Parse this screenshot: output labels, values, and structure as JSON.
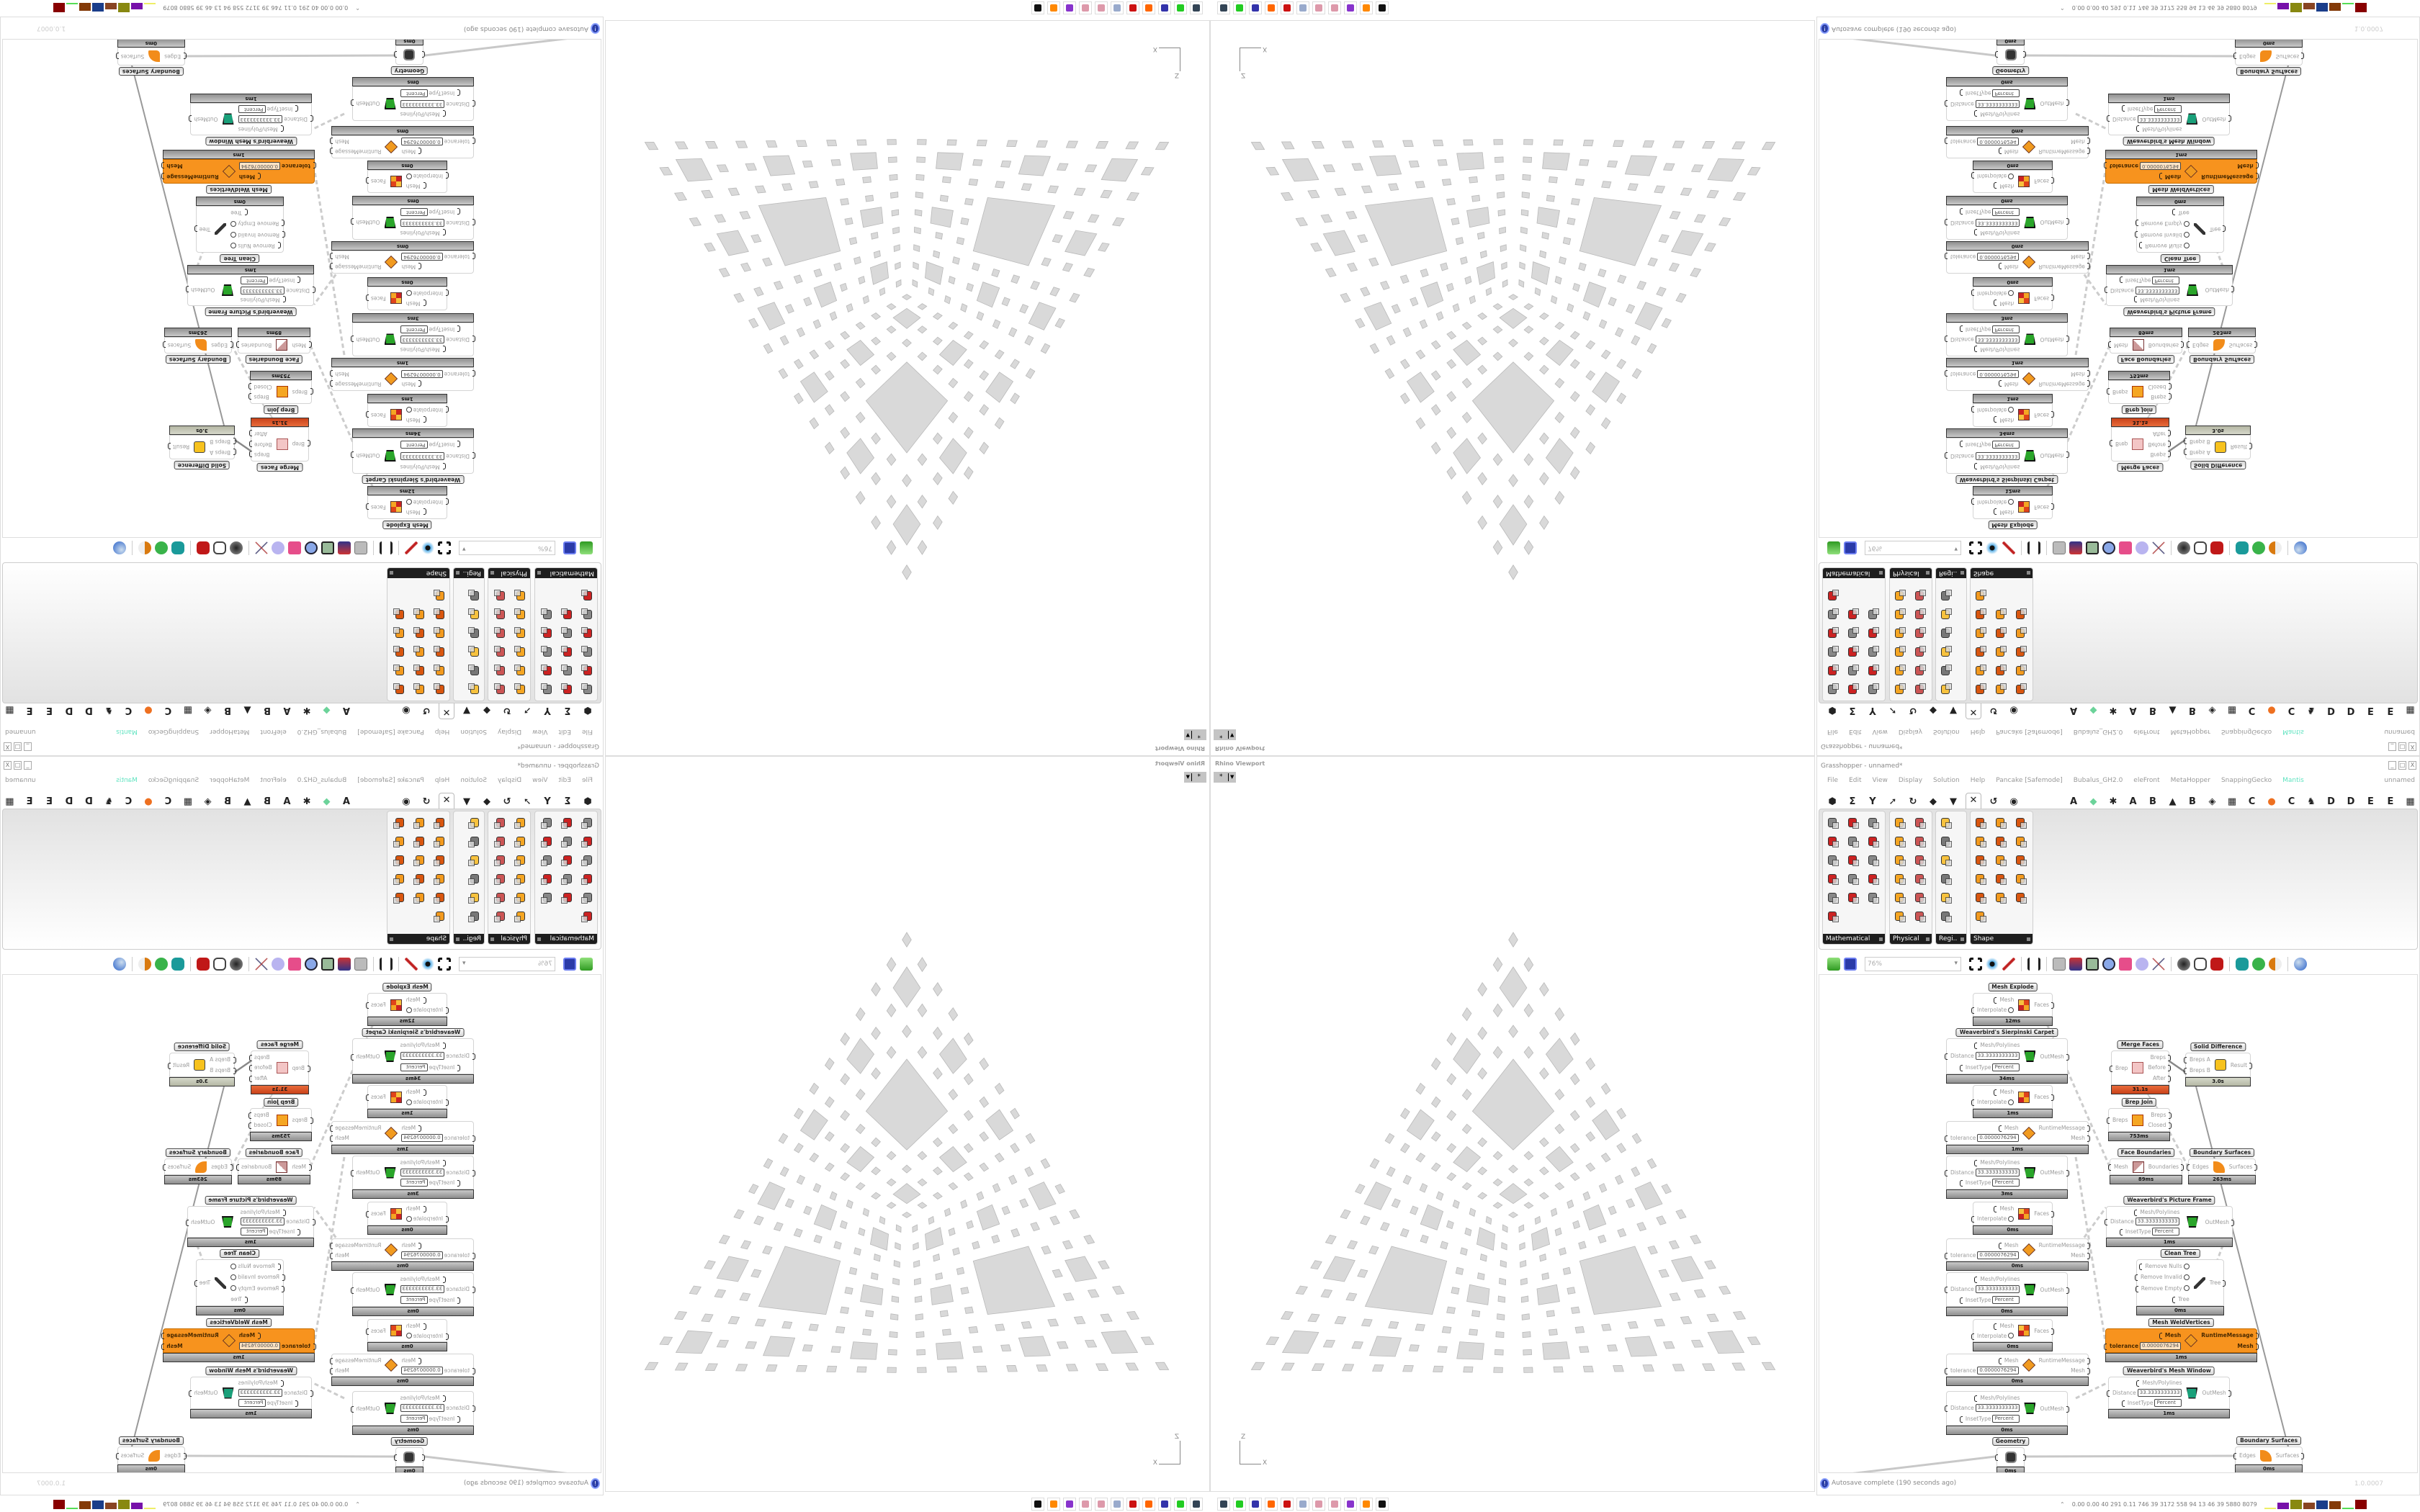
{
  "viewport": {
    "title": "Rhino Viewport",
    "view_button": "*",
    "axis_z": "Z",
    "axis_x": "X",
    "fill_color": "#d9d9d9"
  },
  "gh": {
    "title": "Grasshopper - unnamed*",
    "menu": [
      "File",
      "Edit",
      "View",
      "Display",
      "Solution",
      "Help",
      "Pancake [Safemode]",
      "Bubalus_GH2.0",
      "eleFront",
      "MetaHopper",
      "SnappingGecko",
      "Mantis"
    ],
    "menu_highlight": "Mantis",
    "menu_highlight_color": "#5fe3c0",
    "document_name": "unnamed",
    "tabs_left": [
      "⬢",
      "Σ",
      "Y",
      "➚",
      "↻",
      "◆",
      "▼",
      "✕",
      "↺",
      "◉"
    ],
    "active_tab": 7,
    "tabs_right": [
      "A",
      "◆",
      "✱",
      "A",
      "B",
      "▲",
      "B",
      "◈",
      "▦",
      "C",
      "●",
      "C",
      "♞",
      "D",
      "D",
      "E",
      "E",
      "▦"
    ],
    "panels": [
      {
        "label": "Mathematical",
        "icons": 16
      },
      {
        "label": "Physical",
        "icons": 12
      },
      {
        "label": "Regi..",
        "icons": 6
      },
      {
        "label": "Shape",
        "icons": 16
      }
    ],
    "toolbar": {
      "zoom": "76%"
    },
    "nodes": [
      {
        "label": "Mesh Explode",
        "icon": "mesh-explode",
        "inputs": [
          {
            "name": "Mesh"
          },
          {
            "name": "Interpolate",
            "toggle": true
          }
        ],
        "outputs": [
          "Faces"
        ],
        "time": "12ms"
      },
      {
        "label": "Weaverbird's Sierpinski Carpet",
        "icon": "sierpinski",
        "inputs": [
          {
            "name": "Mesh/Polylines"
          },
          {
            "name": "Distance",
            "value": "33.3333333333"
          },
          {
            "name": "InsetType",
            "value": "Percent"
          }
        ],
        "outputs": [
          "OutMesh"
        ],
        "time": "34ms"
      },
      {
        "label": "",
        "icon": "mesh-explode",
        "inputs": [
          {
            "name": "Mesh"
          },
          {
            "name": "Interpolate",
            "toggle": true
          }
        ],
        "outputs": [
          "Faces"
        ],
        "time": "1ms"
      },
      {
        "label": "",
        "icon": "weld",
        "inputs": [
          {
            "name": "Mesh"
          },
          {
            "name": "tolerance",
            "value": "0.0000076294"
          }
        ],
        "outputs": [
          "RuntimeMessage",
          "Mesh"
        ],
        "time": "1ms"
      },
      {
        "label": "",
        "icon": "sierpinski",
        "inputs": [
          {
            "name": "Mesh/Polylines"
          },
          {
            "name": "Distance",
            "value": "33.3333333333"
          },
          {
            "name": "InsetType",
            "value": "Percent"
          }
        ],
        "outputs": [
          "OutMesh"
        ],
        "time": "3ms"
      },
      {
        "label": "",
        "icon": "mesh-explode",
        "inputs": [
          {
            "name": "Mesh"
          },
          {
            "name": "Interpolate",
            "toggle": true
          }
        ],
        "outputs": [
          "Faces"
        ],
        "time": "0ms"
      },
      {
        "label": "",
        "icon": "weld",
        "inputs": [
          {
            "name": "Mesh"
          },
          {
            "name": "tolerance",
            "value": "0.0000076294"
          }
        ],
        "outputs": [
          "RuntimeMessage",
          "Mesh"
        ],
        "time": "0ms"
      },
      {
        "label": "",
        "icon": "sierpinski",
        "inputs": [
          {
            "name": "Mesh/Polylines"
          },
          {
            "name": "Distance",
            "value": "33.3333333333"
          },
          {
            "name": "InsetType",
            "value": "Percent"
          }
        ],
        "outputs": [
          "OutMesh"
        ],
        "time": "0ms"
      },
      {
        "label": "",
        "icon": "mesh-explode",
        "inputs": [
          {
            "name": "Mesh"
          },
          {
            "name": "Interpolate",
            "toggle": true
          }
        ],
        "outputs": [
          "Faces"
        ],
        "time": "0ms"
      },
      {
        "label": "",
        "icon": "weld",
        "inputs": [
          {
            "name": "Mesh"
          },
          {
            "name": "tolerance",
            "value": "0.0000076294"
          }
        ],
        "outputs": [
          "RuntimeMessage",
          "Mesh"
        ],
        "time": "0ms"
      },
      {
        "label": "",
        "icon": "sierpinski",
        "inputs": [
          {
            "name": "Mesh/Polylines"
          },
          {
            "name": "Distance",
            "value": "33.3333333333"
          },
          {
            "name": "InsetType",
            "value": "Percent"
          }
        ],
        "outputs": [
          "OutMesh"
        ],
        "time": "0ms"
      },
      {
        "label": "Geometry",
        "icon": "geometry",
        "inputs": [
          {
            "name": ""
          }
        ],
        "outputs": [
          ""
        ],
        "time": "0ms"
      },
      {
        "label": "Merge Faces",
        "icon": "merge-faces",
        "inputs": [
          {
            "name": "Brep"
          }
        ],
        "outputs": [
          "Breps",
          "Before",
          "After"
        ],
        "time": "31.1s",
        "bar": "red"
      },
      {
        "label": "Solid Difference",
        "icon": "solid-difference",
        "inputs": [
          {
            "name": "Breps A"
          },
          {
            "name": "Breps B"
          }
        ],
        "outputs": [
          "Result"
        ],
        "time": "3.0s",
        "bar": "sage"
      },
      {
        "label": "Brep Join",
        "icon": "brep-join",
        "inputs": [
          {
            "name": "Breps"
          }
        ],
        "outputs": [
          "Breps",
          "Closed"
        ],
        "time": "753ms"
      },
      {
        "label": "Face Boundaries",
        "icon": "face-boundaries",
        "inputs": [
          {
            "name": "Mesh"
          }
        ],
        "outputs": [
          "Boundaries"
        ],
        "time": "89ms"
      },
      {
        "label": "Boundary Surfaces",
        "icon": "boundary-surface",
        "inputs": [
          {
            "name": "Edges"
          }
        ],
        "outputs": [
          "Surfaces"
        ],
        "time": "263ms"
      },
      {
        "label": "Weaverbird's Picture Frame",
        "icon": "sierpinski",
        "inputs": [
          {
            "name": "Mesh/Polylines"
          },
          {
            "name": "Distance",
            "value": "33.3333333333"
          },
          {
            "name": "InsetType",
            "value": "Percent"
          }
        ],
        "outputs": [
          "OutMesh"
        ],
        "time": "1ms"
      },
      {
        "label": "Clean Tree",
        "icon": "clean-tree",
        "inputs": [
          {
            "name": "Remove Nulls",
            "toggle": true
          },
          {
            "name": "Remove Invalid",
            "toggle": true
          },
          {
            "name": "Remove Empty",
            "toggle": true
          },
          {
            "name": "Tree"
          }
        ],
        "outputs": [
          "Tree"
        ],
        "time": "0ms"
      },
      {
        "label": "Mesh WeldVertices",
        "icon": "weld",
        "selected": true,
        "inputs": [
          {
            "name": "Mesh"
          },
          {
            "name": "tolerance",
            "value": "0.0000076294"
          }
        ],
        "outputs": [
          "RuntimeMessage",
          "Mesh"
        ],
        "time": "1ms"
      },
      {
        "label": "Weaverbird's Mesh Window",
        "icon": "mesh-window",
        "inputs": [
          {
            "name": "Mesh/Polylines"
          },
          {
            "name": "Distance",
            "value": "33.3333333333"
          },
          {
            "name": "InsetType",
            "value": "Percent"
          }
        ],
        "outputs": [
          "OutMesh"
        ],
        "time": "1ms"
      },
      {
        "label": "Boundary Surfaces",
        "icon": "boundary-surface",
        "inputs": [
          {
            "name": "Edges"
          }
        ],
        "outputs": [
          "Surfaces"
        ],
        "time": "0ms"
      }
    ],
    "status": {
      "message": "Autosave complete (190 seconds ago)",
      "version": "1.0.0007"
    }
  },
  "taskbar": {
    "apps": [
      "rhino-icon",
      "terminal-icon",
      "floppy-64-icon",
      "firefox-icon",
      "red-app-icon",
      "calculator-icon",
      "paint-icon",
      "paint-icon",
      "purple-app-icon",
      "blender-icon",
      "inkscape-icon"
    ],
    "stats": "0.00 0.00  40  291  0.11  746  39  3172 558  94  13  46  39  5880 8079"
  }
}
